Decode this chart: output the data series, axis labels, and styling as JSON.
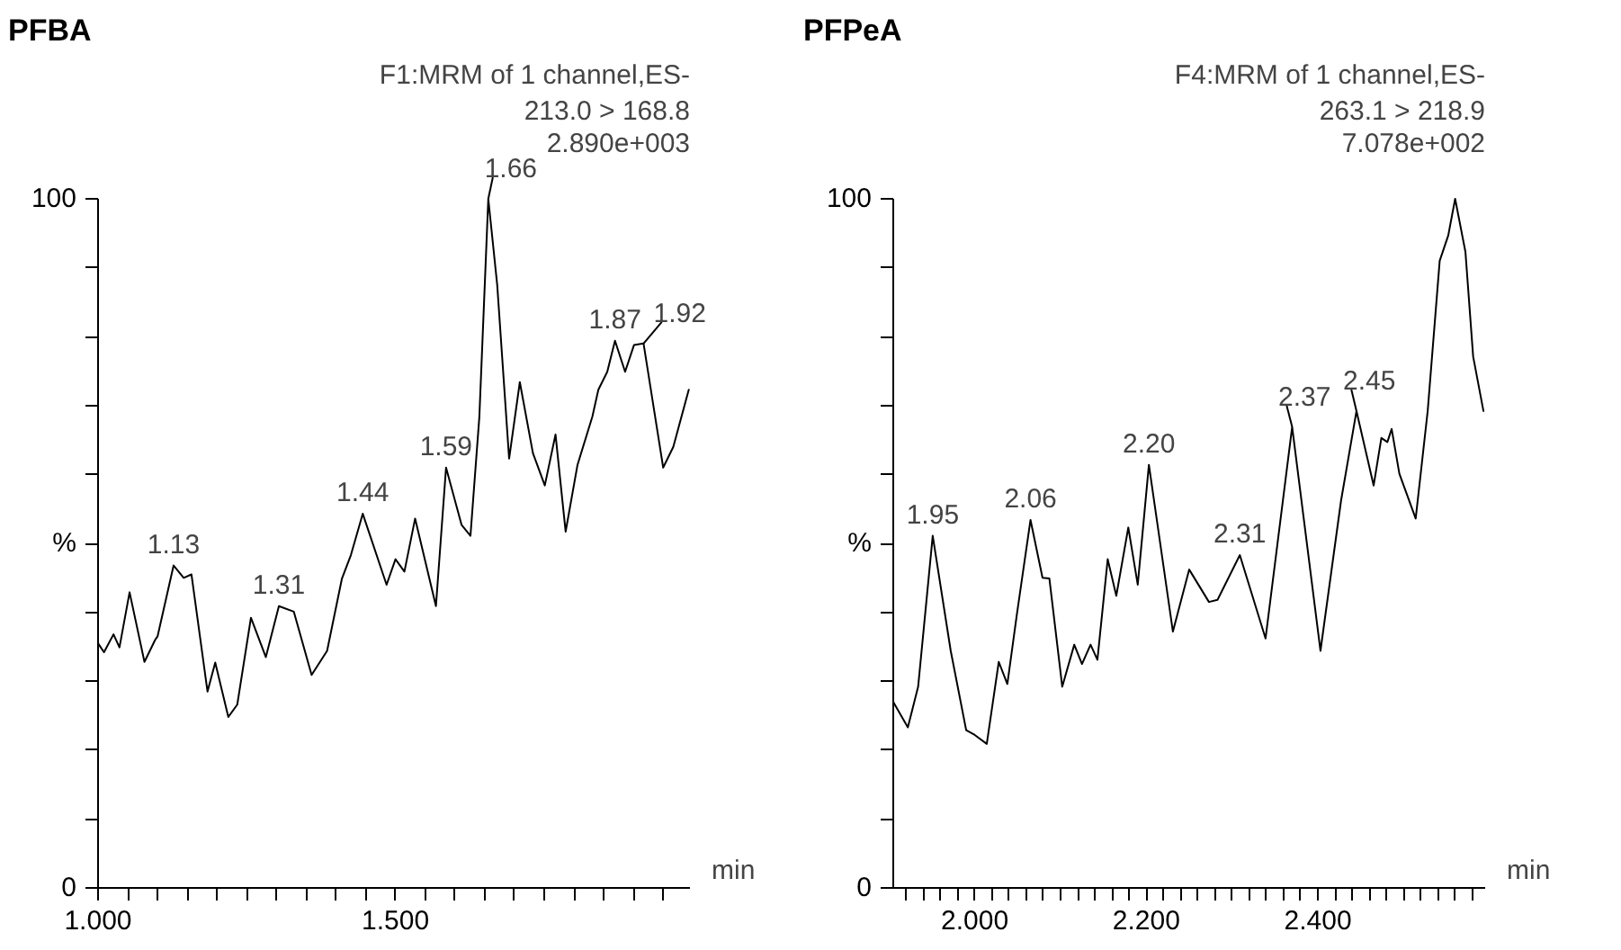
{
  "chart_data": [
    {
      "type": "line",
      "title": "PFBA",
      "xlabel": "min",
      "color": "#000000",
      "annotations": [
        "F1:MRM of 1 channel,ES-",
        "213.0 > 168.8",
        "2.890e+003",
        {
          "text": "1.13",
          "x": 1.127,
          "y": 46.8
        },
        {
          "text": "1.31",
          "x": 1.304,
          "y": 40.9
        },
        {
          "text": "1.44",
          "x": 1.445,
          "y": 54.3
        },
        {
          "text": "1.59",
          "x": 1.585,
          "y": 61.0
        },
        {
          "text": "1.66",
          "x": 1.656,
          "y": 100
        },
        {
          "text": "1.87",
          "x": 1.869,
          "y": 79.4
        },
        {
          "text": "1.92",
          "x": 1.917,
          "y": 79.0
        }
      ],
      "x": [
        1.0,
        1.01,
        1.026,
        1.036,
        1.053,
        1.078,
        1.096,
        1.1,
        1.127,
        1.144,
        1.157,
        1.184,
        1.197,
        1.219,
        1.234,
        1.257,
        1.282,
        1.304,
        1.329,
        1.359,
        1.385,
        1.41,
        1.425,
        1.445,
        1.485,
        1.5,
        1.515,
        1.533,
        1.568,
        1.585,
        1.611,
        1.626,
        1.641,
        1.656,
        1.671,
        1.691,
        1.709,
        1.731,
        1.751,
        1.769,
        1.786,
        1.806,
        1.831,
        1.841,
        1.856,
        1.869,
        1.886,
        1.901,
        1.917,
        1.95,
        1.967,
        1.993
      ],
      "values": [
        35.5,
        34.2,
        36.8,
        34.9,
        42.9,
        32.8,
        36.0,
        36.5,
        46.8,
        45.0,
        45.5,
        28.5,
        32.7,
        24.8,
        26.6,
        39.2,
        33.5,
        40.9,
        40.1,
        30.9,
        34.4,
        44.9,
        48.3,
        54.3,
        44.0,
        47.7,
        45.9,
        53.6,
        40.9,
        61.0,
        52.7,
        51.1,
        68.4,
        100,
        87.5,
        62.3,
        73.4,
        63.1,
        58.4,
        65.8,
        51.7,
        61.4,
        68.4,
        72.3,
        74.9,
        79.4,
        74.9,
        78.8,
        79.0,
        61.0,
        64.0,
        72.3
      ],
      "xlim": [
        1.0,
        1.995
      ],
      "ylim": [
        0,
        100
      ],
      "xticks": [
        {
          "value": 1.0,
          "label": "1.000"
        },
        {
          "value": 1.05,
          "label": null
        },
        {
          "value": 1.1,
          "label": null
        },
        {
          "value": 1.15,
          "label": null
        },
        {
          "value": 1.2,
          "label": null
        },
        {
          "value": 1.25,
          "label": null
        },
        {
          "value": 1.3,
          "label": null
        },
        {
          "value": 1.35,
          "label": null
        },
        {
          "value": 1.4,
          "label": null
        },
        {
          "value": 1.45,
          "label": null
        },
        {
          "value": 1.5,
          "label": "1.500"
        },
        {
          "value": 1.55,
          "label": null
        },
        {
          "value": 1.6,
          "label": null
        },
        {
          "value": 1.65,
          "label": null
        },
        {
          "value": 1.7,
          "label": null
        },
        {
          "value": 1.75,
          "label": null
        },
        {
          "value": 1.8,
          "label": null
        },
        {
          "value": 1.85,
          "label": null
        },
        {
          "value": 1.9,
          "label": null
        },
        {
          "value": 1.95,
          "label": null
        }
      ],
      "yticks": [
        0,
        {
          "value": 10,
          "label": null
        },
        {
          "value": 20,
          "label": null
        },
        {
          "value": 30,
          "label": null
        },
        {
          "value": 40,
          "label": null
        },
        {
          "value": 50,
          "label": "%"
        },
        {
          "value": 60,
          "label": null
        },
        {
          "value": 70,
          "label": null
        },
        {
          "value": 80,
          "label": null
        },
        {
          "value": 90,
          "label": null
        },
        100
      ]
    },
    {
      "type": "line",
      "title": "PFPeA",
      "xlabel": "min",
      "color": "#000000",
      "annotations": [
        "F4:MRM of 1 channel,ES-",
        "263.1 > 218.9",
        "7.078e+002",
        {
          "text": "1.95",
          "x": 1.951,
          "y": 51.1
        },
        {
          "text": "2.06",
          "x": 2.065,
          "y": 53.4
        },
        {
          "text": "2.20",
          "x": 2.203,
          "y": 61.4
        },
        {
          "text": "2.31",
          "x": 2.309,
          "y": 48.3
        },
        {
          "text": "2.37",
          "x": 2.37,
          "y": 66.9
        },
        {
          "text": "2.45",
          "x": 2.445,
          "y": 69.2
        }
      ],
      "x": [
        1.905,
        1.922,
        1.934,
        1.951,
        1.972,
        1.99,
        2.0,
        2.014,
        2.028,
        2.038,
        2.049,
        2.065,
        2.079,
        2.087,
        2.102,
        2.116,
        2.125,
        2.135,
        2.143,
        2.155,
        2.165,
        2.179,
        2.19,
        2.203,
        2.231,
        2.25,
        2.273,
        2.283,
        2.309,
        2.339,
        2.37,
        2.403,
        2.427,
        2.445,
        2.465,
        2.474,
        2.481,
        2.486,
        2.495,
        2.514,
        2.528,
        2.542,
        2.552,
        2.56,
        2.572,
        2.581,
        2.593
      ],
      "values": [
        27.0,
        23.3,
        29.2,
        51.1,
        34.4,
        22.9,
        22.2,
        20.9,
        32.8,
        29.6,
        39.6,
        53.4,
        45.0,
        44.9,
        29.2,
        35.3,
        32.5,
        35.3,
        33.1,
        47.7,
        42.4,
        52.3,
        44.0,
        61.4,
        37.2,
        46.2,
        41.5,
        41.8,
        48.3,
        36.2,
        66.9,
        34.4,
        56.2,
        69.2,
        58.4,
        65.3,
        64.7,
        66.6,
        60.1,
        53.6,
        69.2,
        91.0,
        94.7,
        100,
        92.3,
        77.1,
        69.2
      ],
      "xlim": [
        1.905,
        2.595
      ],
      "ylim": [
        0,
        100
      ],
      "xticks": [
        {
          "value": 1.92,
          "label": null
        },
        {
          "value": 1.94,
          "label": null
        },
        {
          "value": 1.96,
          "label": null
        },
        {
          "value": 1.98,
          "label": null
        },
        {
          "value": 2.0,
          "label": "2.000"
        },
        {
          "value": 2.02,
          "label": null
        },
        {
          "value": 2.04,
          "label": null
        },
        {
          "value": 2.06,
          "label": null
        },
        {
          "value": 2.08,
          "label": null
        },
        {
          "value": 2.1,
          "label": null
        },
        {
          "value": 2.12,
          "label": null
        },
        {
          "value": 2.14,
          "label": null
        },
        {
          "value": 2.16,
          "label": null
        },
        {
          "value": 2.18,
          "label": null
        },
        {
          "value": 2.2,
          "label": "2.200"
        },
        {
          "value": 2.22,
          "label": null
        },
        {
          "value": 2.24,
          "label": null
        },
        {
          "value": 2.26,
          "label": null
        },
        {
          "value": 2.28,
          "label": null
        },
        {
          "value": 2.3,
          "label": null
        },
        {
          "value": 2.32,
          "label": null
        },
        {
          "value": 2.34,
          "label": null
        },
        {
          "value": 2.36,
          "label": null
        },
        {
          "value": 2.38,
          "label": null
        },
        {
          "value": 2.4,
          "label": "2.400"
        },
        {
          "value": 2.42,
          "label": null
        },
        {
          "value": 2.44,
          "label": null
        },
        {
          "value": 2.46,
          "label": null
        },
        {
          "value": 2.48,
          "label": null
        },
        {
          "value": 2.5,
          "label": null
        },
        {
          "value": 2.52,
          "label": null
        },
        {
          "value": 2.54,
          "label": null
        },
        {
          "value": 2.56,
          "label": null
        },
        {
          "value": 2.58,
          "label": null
        }
      ],
      "yticks": [
        0,
        {
          "value": 10,
          "label": null
        },
        {
          "value": 20,
          "label": null
        },
        {
          "value": 30,
          "label": null
        },
        {
          "value": 40,
          "label": null
        },
        {
          "value": 50,
          "label": "%"
        },
        {
          "value": 60,
          "label": null
        },
        {
          "value": 70,
          "label": null
        },
        {
          "value": 80,
          "label": null
        },
        {
          "value": 90,
          "label": null
        },
        100
      ]
    }
  ]
}
